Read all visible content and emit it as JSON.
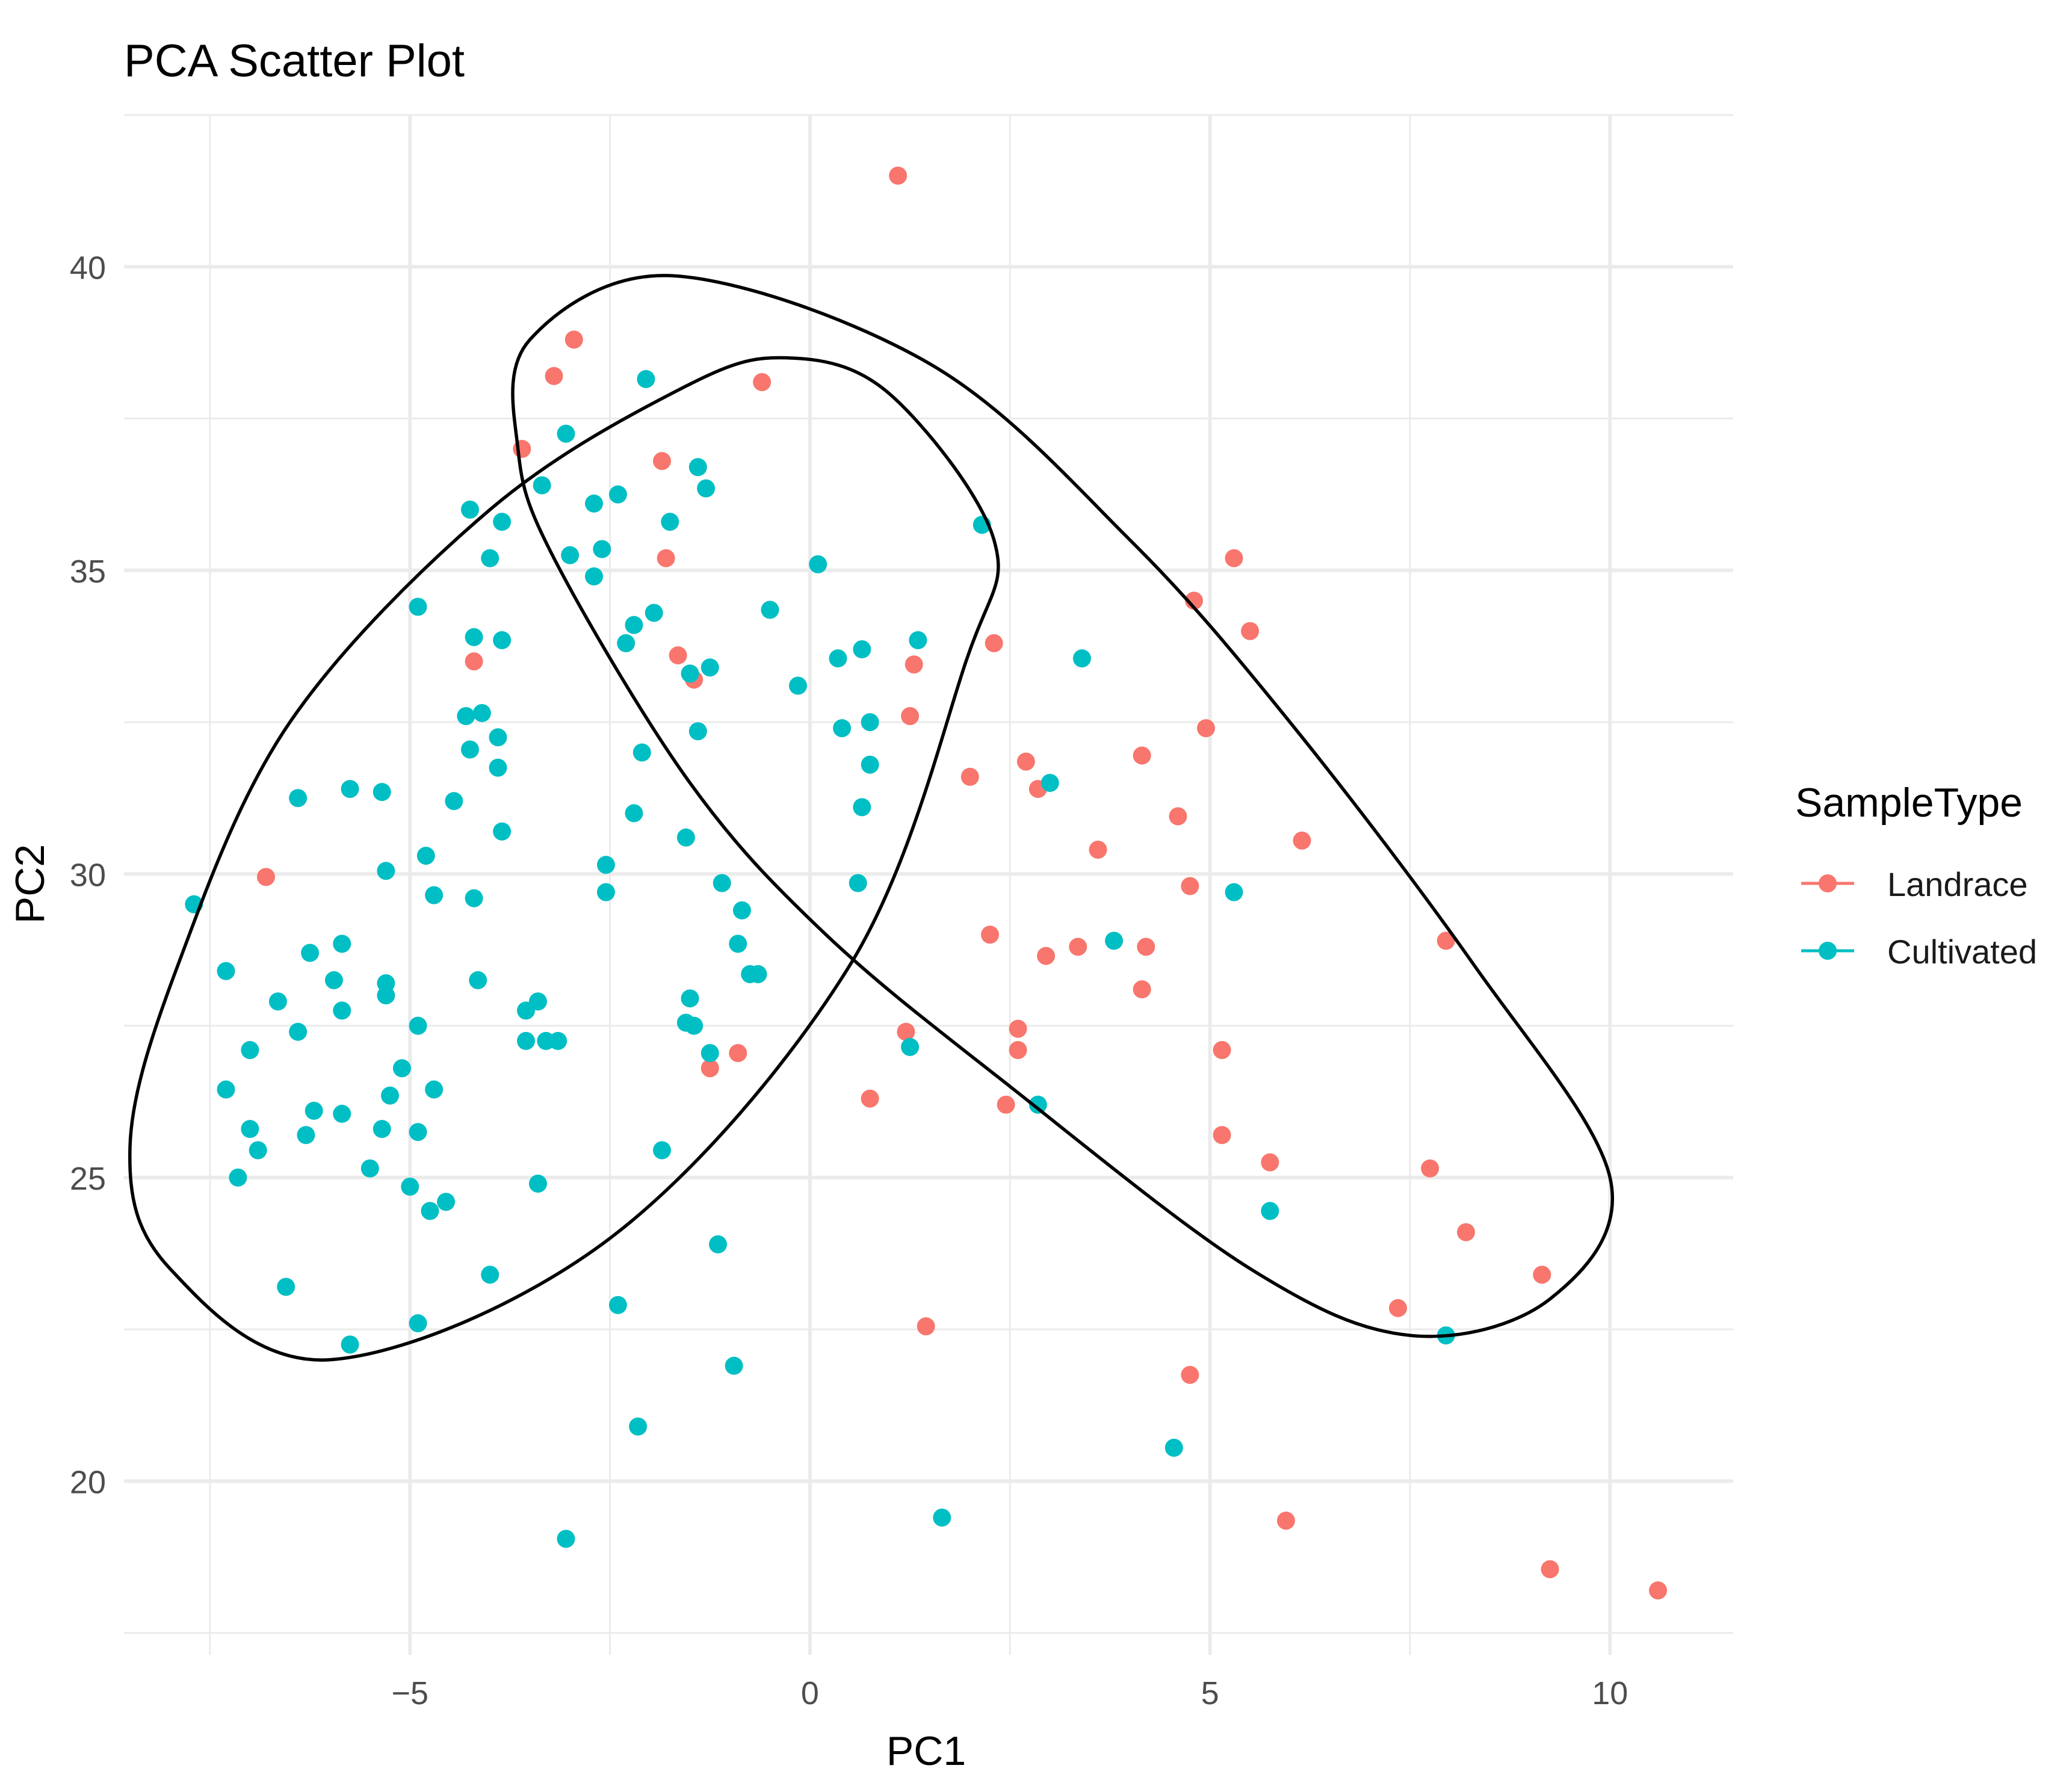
{
  "chart_data": {
    "type": "scatter",
    "title": "PCA Scatter Plot",
    "xlabel": "PC1",
    "ylabel": "PC2",
    "xlim": [
      -8.575,
      11.54
    ],
    "ylim": [
      17.14,
      42.51
    ],
    "x_ticks": [
      -5,
      0,
      5,
      10
    ],
    "x_tick_labels": [
      "−5",
      "0",
      "5",
      "10"
    ],
    "y_ticks": [
      20,
      25,
      30,
      35,
      40
    ],
    "y_tick_labels": [
      "20",
      "25",
      "30",
      "35",
      "40"
    ],
    "grid": true,
    "legend": {
      "title": "SampleType",
      "position": "right",
      "entries": [
        "Landrace",
        "Cultivated"
      ]
    },
    "colors": {
      "Landrace": "#F8766D",
      "Cultivated": "#00BFC4"
    },
    "series": [
      {
        "name": "Landrace",
        "color": "#F8766D",
        "points": [
          [
            1.1,
            41.5
          ],
          [
            -2.95,
            38.8
          ],
          [
            -3.2,
            38.2
          ],
          [
            -0.6,
            38.1
          ],
          [
            -3.6,
            37.0
          ],
          [
            -1.85,
            36.8
          ],
          [
            -1.8,
            35.2
          ],
          [
            5.3,
            35.2
          ],
          [
            4.8,
            34.5
          ],
          [
            5.5,
            34.0
          ],
          [
            2.3,
            33.8
          ],
          [
            -4.2,
            33.5
          ],
          [
            -1.65,
            33.6
          ],
          [
            1.3,
            33.45
          ],
          [
            -1.45,
            33.2
          ],
          [
            1.25,
            32.6
          ],
          [
            4.95,
            32.4
          ],
          [
            4.15,
            31.95
          ],
          [
            2.7,
            31.85
          ],
          [
            2.0,
            31.6
          ],
          [
            2.85,
            31.4
          ],
          [
            4.6,
            30.95
          ],
          [
            6.15,
            30.55
          ],
          [
            3.6,
            30.4
          ],
          [
            -6.8,
            29.95
          ],
          [
            4.75,
            29.8
          ],
          [
            2.25,
            29.0
          ],
          [
            7.95,
            28.9
          ],
          [
            3.35,
            28.8
          ],
          [
            4.2,
            28.8
          ],
          [
            2.95,
            28.65
          ],
          [
            4.15,
            28.1
          ],
          [
            1.2,
            27.4
          ],
          [
            2.6,
            27.45
          ],
          [
            2.6,
            27.1
          ],
          [
            5.15,
            27.1
          ],
          [
            -0.9,
            27.05
          ],
          [
            -1.25,
            26.8
          ],
          [
            0.75,
            26.3
          ],
          [
            2.45,
            26.2
          ],
          [
            5.15,
            25.7
          ],
          [
            5.75,
            25.25
          ],
          [
            7.75,
            25.15
          ],
          [
            8.2,
            24.1
          ],
          [
            9.15,
            23.4
          ],
          [
            7.35,
            22.85
          ],
          [
            1.45,
            22.55
          ],
          [
            4.75,
            21.75
          ],
          [
            5.95,
            19.35
          ],
          [
            9.25,
            18.55
          ],
          [
            10.6,
            18.2
          ]
        ]
      },
      {
        "name": "Cultivated",
        "color": "#00BFC4",
        "points": [
          [
            -2.05,
            38.15
          ],
          [
            -3.05,
            37.25
          ],
          [
            -1.4,
            36.7
          ],
          [
            -3.35,
            36.4
          ],
          [
            -1.3,
            36.35
          ],
          [
            -2.4,
            36.25
          ],
          [
            -2.7,
            36.1
          ],
          [
            -4.25,
            36.0
          ],
          [
            -3.85,
            35.8
          ],
          [
            -1.75,
            35.8
          ],
          [
            2.15,
            35.75
          ],
          [
            -2.6,
            35.35
          ],
          [
            -3.0,
            35.25
          ],
          [
            -4.0,
            35.2
          ],
          [
            0.1,
            35.1
          ],
          [
            -2.7,
            34.9
          ],
          [
            -4.9,
            34.4
          ],
          [
            -0.5,
            34.35
          ],
          [
            -1.95,
            34.3
          ],
          [
            -2.2,
            34.1
          ],
          [
            -4.2,
            33.9
          ],
          [
            -3.85,
            33.85
          ],
          [
            1.35,
            33.85
          ],
          [
            -2.3,
            33.8
          ],
          [
            0.65,
            33.7
          ],
          [
            3.4,
            33.55
          ],
          [
            0.35,
            33.55
          ],
          [
            -1.25,
            33.4
          ],
          [
            -1.5,
            33.3
          ],
          [
            -0.15,
            33.1
          ],
          [
            -4.1,
            32.65
          ],
          [
            -4.3,
            32.6
          ],
          [
            0.75,
            32.5
          ],
          [
            -1.4,
            32.35
          ],
          [
            0.4,
            32.4
          ],
          [
            -3.9,
            32.25
          ],
          [
            -4.25,
            32.05
          ],
          [
            -2.1,
            32.0
          ],
          [
            0.75,
            31.8
          ],
          [
            -3.9,
            31.75
          ],
          [
            3.0,
            31.5
          ],
          [
            -5.75,
            31.4
          ],
          [
            -5.35,
            31.35
          ],
          [
            -6.4,
            31.25
          ],
          [
            -4.45,
            31.2
          ],
          [
            0.65,
            31.1
          ],
          [
            -2.2,
            31.0
          ],
          [
            -3.85,
            30.7
          ],
          [
            -1.55,
            30.6
          ],
          [
            -4.8,
            30.3
          ],
          [
            -2.55,
            30.15
          ],
          [
            -5.3,
            30.05
          ],
          [
            -1.1,
            29.85
          ],
          [
            0.6,
            29.85
          ],
          [
            -4.2,
            29.6
          ],
          [
            -4.7,
            29.65
          ],
          [
            -2.55,
            29.7
          ],
          [
            5.3,
            29.7
          ],
          [
            -7.7,
            29.5
          ],
          [
            -0.85,
            29.4
          ],
          [
            3.8,
            28.9
          ],
          [
            -0.9,
            28.85
          ],
          [
            -5.85,
            28.85
          ],
          [
            -6.25,
            28.7
          ],
          [
            -7.3,
            28.4
          ],
          [
            -0.75,
            28.35
          ],
          [
            -0.65,
            28.35
          ],
          [
            -4.15,
            28.25
          ],
          [
            -5.95,
            28.25
          ],
          [
            -5.3,
            28.2
          ],
          [
            -5.3,
            28.0
          ],
          [
            -1.5,
            27.95
          ],
          [
            -6.65,
            27.9
          ],
          [
            -3.4,
            27.9
          ],
          [
            -3.55,
            27.75
          ],
          [
            -5.85,
            27.75
          ],
          [
            -1.55,
            27.55
          ],
          [
            -4.9,
            27.5
          ],
          [
            -1.45,
            27.5
          ],
          [
            -6.4,
            27.4
          ],
          [
            -3.55,
            27.25
          ],
          [
            -3.3,
            27.25
          ],
          [
            -3.15,
            27.25
          ],
          [
            1.25,
            27.15
          ],
          [
            -7.0,
            27.1
          ],
          [
            -1.25,
            27.05
          ],
          [
            -5.1,
            26.8
          ],
          [
            -4.7,
            26.45
          ],
          [
            -7.3,
            26.45
          ],
          [
            -5.25,
            26.35
          ],
          [
            2.85,
            26.2
          ],
          [
            -6.2,
            26.1
          ],
          [
            -5.85,
            26.05
          ],
          [
            -7.0,
            25.8
          ],
          [
            -5.35,
            25.8
          ],
          [
            -4.9,
            25.75
          ],
          [
            -6.3,
            25.7
          ],
          [
            -6.9,
            25.45
          ],
          [
            -1.85,
            25.45
          ],
          [
            -5.5,
            25.15
          ],
          [
            -7.15,
            25.0
          ],
          [
            -3.4,
            24.9
          ],
          [
            -5.0,
            24.85
          ],
          [
            -4.55,
            24.6
          ],
          [
            5.75,
            24.45
          ],
          [
            -4.75,
            24.45
          ],
          [
            -1.15,
            23.9
          ],
          [
            -4.0,
            23.4
          ],
          [
            -6.55,
            23.2
          ],
          [
            -2.4,
            22.9
          ],
          [
            -4.9,
            22.6
          ],
          [
            7.95,
            22.4
          ],
          [
            -5.75,
            22.25
          ],
          [
            -0.95,
            21.9
          ],
          [
            -2.15,
            20.9
          ],
          [
            4.55,
            20.55
          ],
          [
            1.65,
            19.4
          ],
          [
            -3.05,
            19.05
          ]
        ]
      }
    ],
    "ellipses": [
      {
        "group": "Cultivated",
        "outline": [
          [
            -6.0,
            22.0
          ],
          [
            -2.5,
            24.0
          ],
          [
            0.5,
            28.5
          ],
          [
            1.95,
            33.5
          ],
          [
            2.3,
            35.5
          ],
          [
            1.0,
            37.9
          ],
          [
            -0.3,
            38.5
          ],
          [
            -1.6,
            38.0
          ],
          [
            -4.0,
            36.0
          ],
          [
            -6.5,
            32.5
          ],
          [
            -7.9,
            28.5
          ],
          [
            -8.5,
            25.5
          ],
          [
            -8.0,
            23.5
          ]
        ]
      },
      {
        "group": "Landrace",
        "outline": [
          [
            -1.7,
            39.85
          ],
          [
            -3.5,
            38.8
          ],
          [
            -3.65,
            37.0
          ],
          [
            -3.2,
            35.2
          ],
          [
            -1.5,
            31.5
          ],
          [
            0.2,
            29.0
          ],
          [
            2.5,
            26.5
          ],
          [
            5.5,
            23.5
          ],
          [
            7.5,
            22.4
          ],
          [
            9.25,
            23.0
          ],
          [
            10.0,
            25.0
          ],
          [
            8.3,
            28.5
          ],
          [
            6.0,
            32.5
          ],
          [
            4.0,
            35.5
          ],
          [
            1.5,
            38.4
          ]
        ]
      }
    ]
  }
}
